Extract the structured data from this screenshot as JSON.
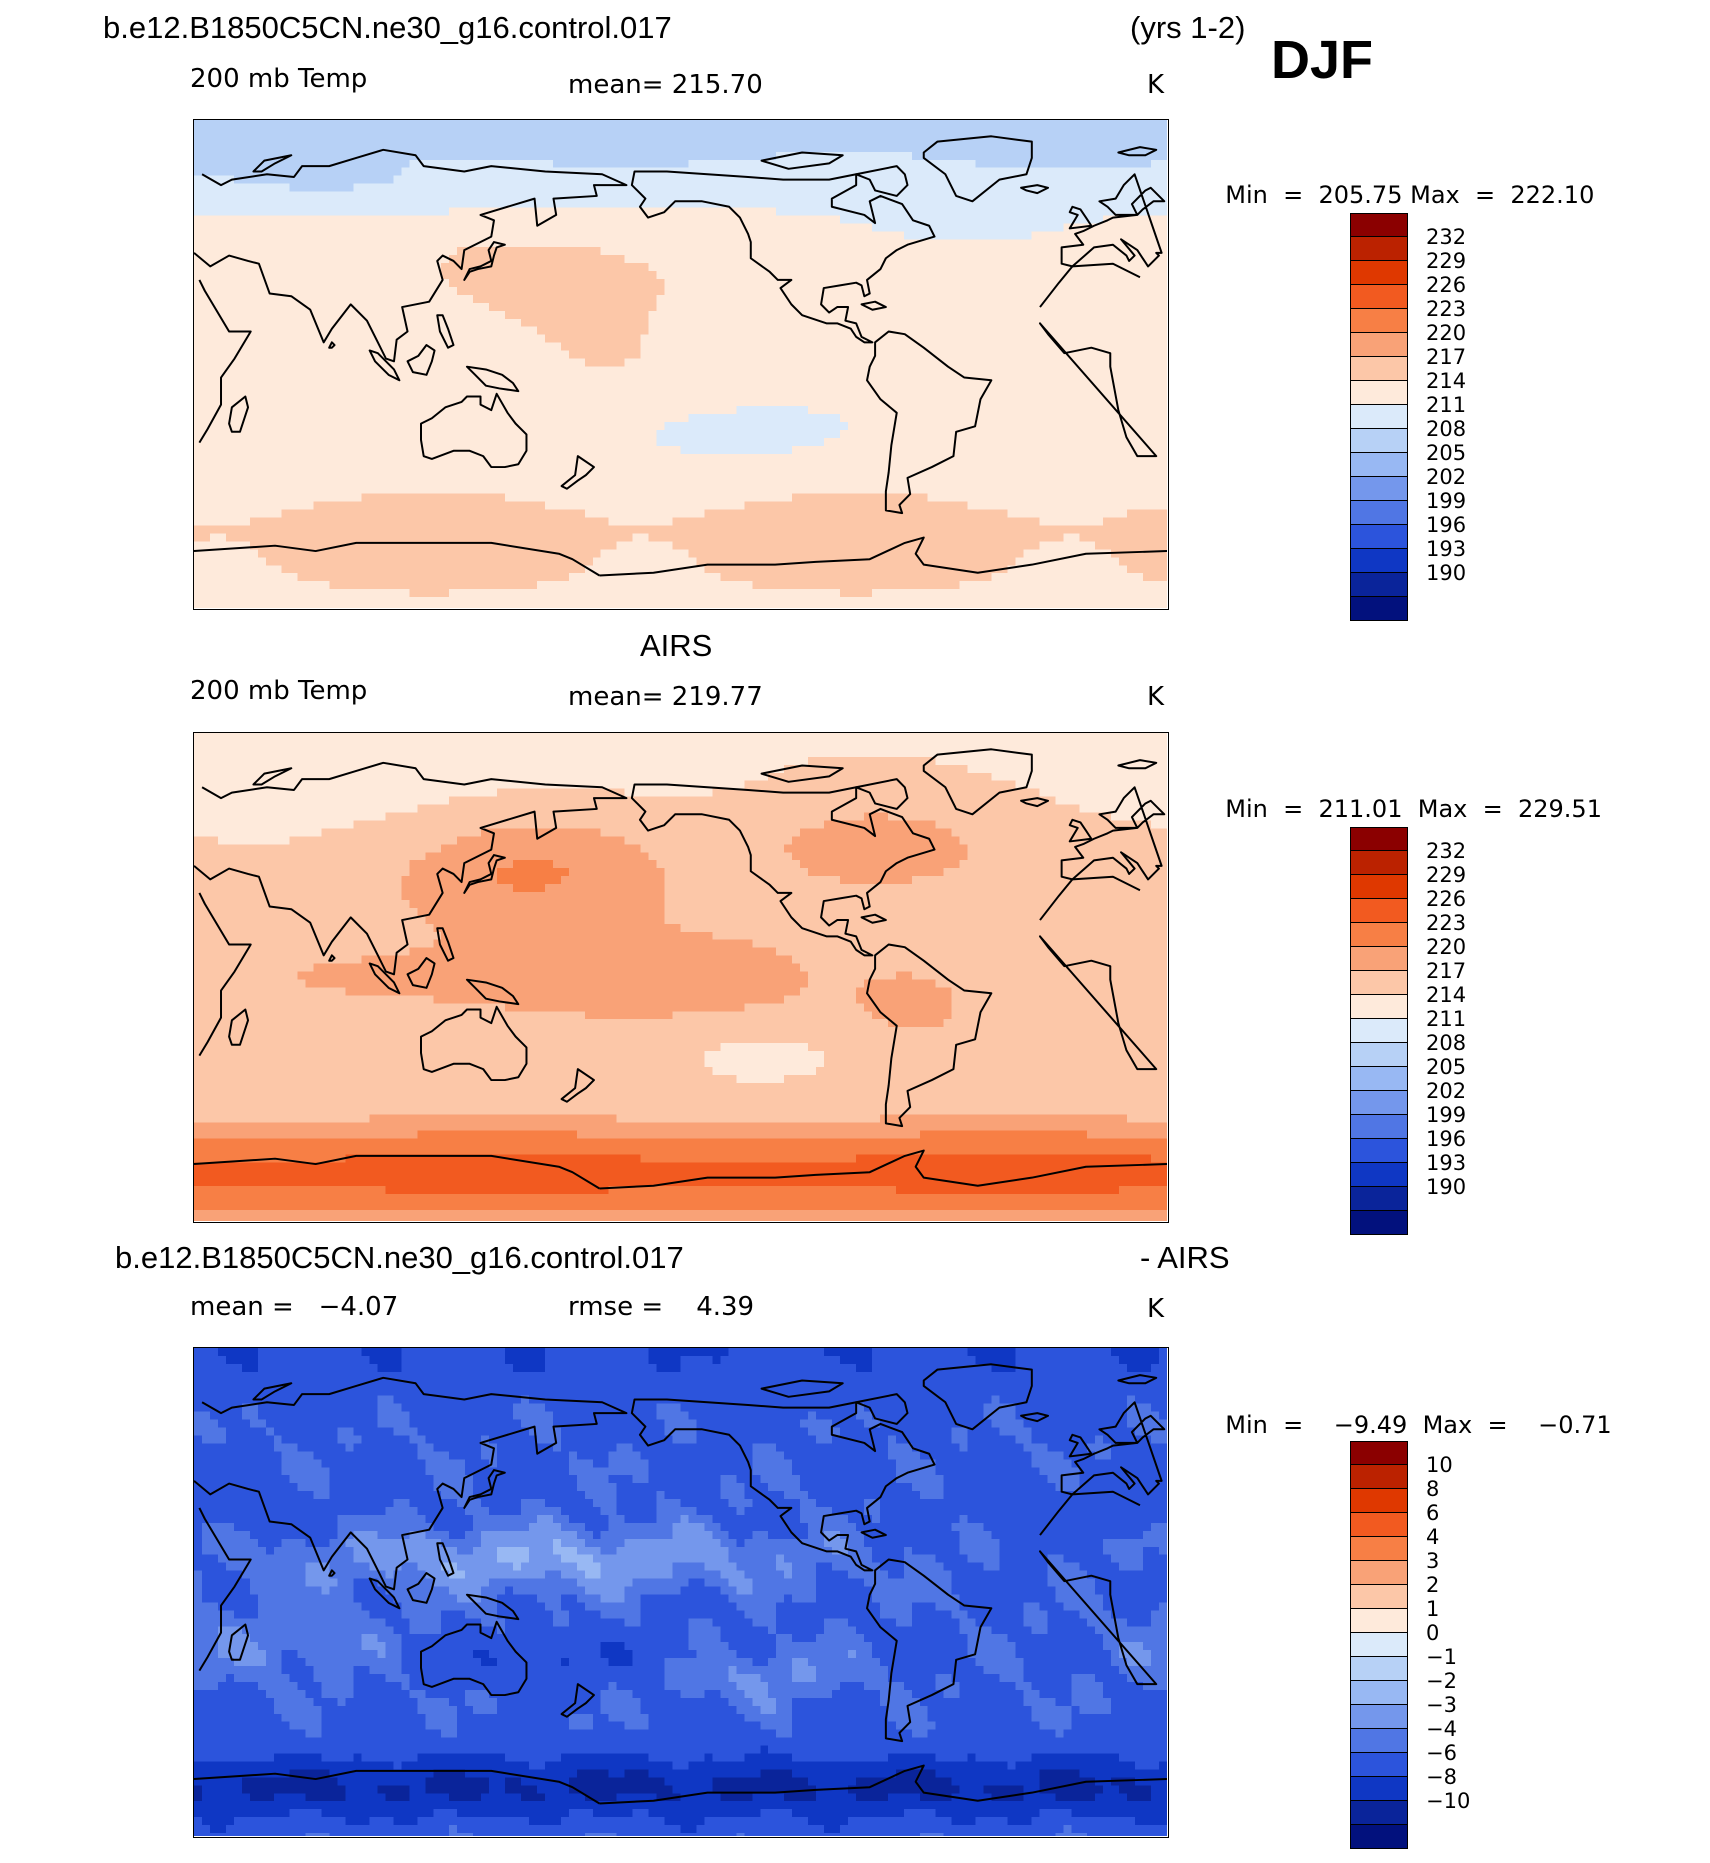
{
  "header": {
    "case_name": "b.e12.B1850C5CN.ne30_g16.control.017",
    "years": "(yrs 1-2)",
    "season": "DJF"
  },
  "panels": [
    {
      "id": "model",
      "title": "",
      "left_label": "200 mb Temp",
      "center_label": "mean= 215.70",
      "units": "K",
      "min_label": "Min",
      "min_value": "205.75",
      "max_label": "Max",
      "max_value": "222.10",
      "palette": "temp",
      "field": "model"
    },
    {
      "id": "obs",
      "title": "AIRS",
      "left_label": "200 mb Temp",
      "center_label": "mean= 219.77",
      "units": "K",
      "min_label": "Min",
      "min_value": "211.01",
      "max_label": "Max",
      "max_value": "229.51",
      "palette": "temp",
      "field": "obs"
    },
    {
      "id": "diff",
      "title": "b.e12.B1850C5CN.ne30_g16.control.017",
      "title_right": "- AIRS",
      "left_label": "mean =   −4.07",
      "center_label": "rmse =    4.39",
      "units": "K",
      "min_label": "Min",
      "min_value": "−9.49",
      "max_label": "Max",
      "max_value": "−0.71",
      "palette": "diff",
      "field": "diff"
    }
  ],
  "colorbars": {
    "temp": {
      "labels": [
        "232",
        "229",
        "226",
        "223",
        "220",
        "217",
        "214",
        "211",
        "208",
        "205",
        "202",
        "199",
        "196",
        "193",
        "190"
      ],
      "colors": [
        "#8b0000",
        "#bb2200",
        "#df3800",
        "#f25a20",
        "#f77f45",
        "#f9a277",
        "#fcc7a8",
        "#feeadb",
        "#dbeafa",
        "#b7d1f6",
        "#98b8f3",
        "#7497ec",
        "#5076e4",
        "#2c54dc",
        "#0f37c4",
        "#0a249a",
        "#02117d"
      ]
    },
    "diff": {
      "labels": [
        "10",
        "8",
        "6",
        "4",
        "3",
        "2",
        "1",
        "0",
        "−1",
        "−2",
        "−3",
        "−4",
        "−6",
        "−8",
        "−10"
      ],
      "colors": [
        "#8b0000",
        "#bb2200",
        "#df3800",
        "#f25a20",
        "#f77f45",
        "#f9a277",
        "#fcc7a8",
        "#feeadb",
        "#dbeafa",
        "#b7d1f6",
        "#98b8f3",
        "#7497ec",
        "#5076e4",
        "#2c54dc",
        "#0f37c4",
        "#0a249a",
        "#02117d"
      ]
    }
  }
}
